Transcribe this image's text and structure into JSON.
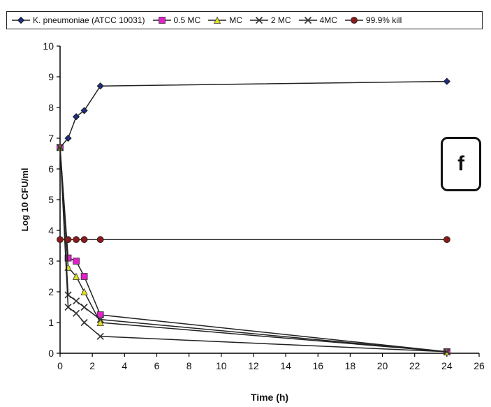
{
  "chart_data": {
    "type": "line",
    "xlabel": "Time (h)",
    "ylabel": "Log 10 CFU/ml",
    "xlim": [
      0,
      26
    ],
    "ylim": [
      0,
      10
    ],
    "xticks": [
      0,
      2,
      4,
      6,
      8,
      10,
      12,
      14,
      16,
      18,
      20,
      22,
      24,
      26
    ],
    "yticks": [
      0,
      1,
      2,
      3,
      4,
      5,
      6,
      7,
      8,
      9,
      10
    ],
    "grid": false,
    "legend_position": "top",
    "panel_label": "f",
    "series": [
      {
        "name": "K. pneumoniae (ATCC 10031)",
        "color": "#1f2f7a",
        "marker": "diamond",
        "x": [
          0,
          0.5,
          1,
          1.5,
          2.5,
          24
        ],
        "y": [
          6.7,
          7.0,
          7.7,
          7.9,
          8.7,
          8.85
        ]
      },
      {
        "name": "0.5 MC",
        "color": "#e020c8",
        "marker": "square",
        "x": [
          0,
          0.5,
          1,
          1.5,
          2.5,
          24
        ],
        "y": [
          6.7,
          3.1,
          3.0,
          2.5,
          1.25,
          0.05
        ]
      },
      {
        "name": "MC",
        "color": "#e0e020",
        "marker": "triangle",
        "x": [
          0,
          0.5,
          1,
          1.5,
          2.5,
          24
        ],
        "y": [
          6.7,
          2.8,
          2.5,
          2.0,
          1.0,
          0.05
        ]
      },
      {
        "name": "2 MC",
        "color": "#333333",
        "marker": "x",
        "x": [
          0,
          0.5,
          1,
          1.5,
          2.5,
          24
        ],
        "y": [
          6.7,
          1.9,
          1.7,
          1.5,
          1.1,
          0.05
        ]
      },
      {
        "name": "4MC",
        "color": "#333333",
        "marker": "x",
        "x": [
          0,
          0.5,
          1,
          1.5,
          2.5,
          24
        ],
        "y": [
          6.7,
          1.5,
          1.3,
          1.0,
          0.55,
          0.05
        ]
      },
      {
        "name": "99.9% kill",
        "color": "#8b1a1a",
        "marker": "circle",
        "x": [
          0,
          0.5,
          1,
          1.5,
          2.5,
          24
        ],
        "y": [
          3.7,
          3.7,
          3.7,
          3.7,
          3.7,
          3.7
        ]
      }
    ]
  }
}
